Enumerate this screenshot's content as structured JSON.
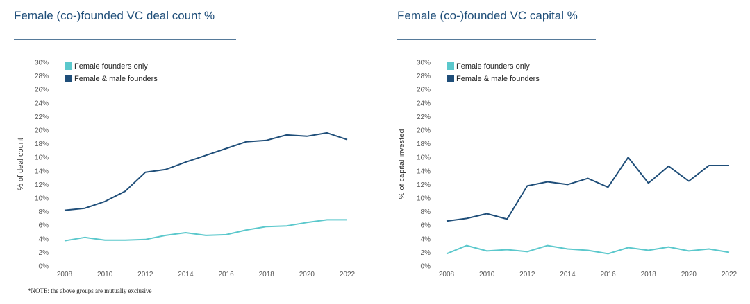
{
  "note": "*NOTE: the above groups are mutually exclusive",
  "colors": {
    "female_only": "#5bc8cc",
    "mixed": "#1f4e79",
    "title": "#1f4e79"
  },
  "chart_data": [
    {
      "type": "line",
      "title": "Female (co-)founded VC deal count %",
      "xlabel": "",
      "ylabel": "% of deal count",
      "ylim": [
        0,
        30
      ],
      "y_ticks": [
        "0%",
        "2%",
        "4%",
        "6%",
        "8%",
        "10%",
        "12%",
        "14%",
        "16%",
        "18%",
        "20%",
        "22%",
        "24%",
        "26%",
        "28%",
        "30%"
      ],
      "x_ticks": [
        "2008",
        "2010",
        "2012",
        "2014",
        "2016",
        "2018",
        "2020",
        "2022"
      ],
      "x": [
        2008,
        2009,
        2010,
        2011,
        2012,
        2013,
        2014,
        2015,
        2016,
        2017,
        2018,
        2019,
        2020,
        2021,
        2022
      ],
      "legend_position": "top-left",
      "series": [
        {
          "name": "Female founders only",
          "color": "#5bc8cc",
          "values": [
            3.7,
            4.2,
            3.8,
            3.8,
            3.9,
            4.5,
            4.9,
            4.5,
            4.6,
            5.3,
            5.8,
            5.9,
            6.4,
            6.8,
            6.8
          ]
        },
        {
          "name": "Female & male founders",
          "color": "#1f4e79",
          "values": [
            8.2,
            8.5,
            9.5,
            11.0,
            13.8,
            14.2,
            15.3,
            16.3,
            17.3,
            18.3,
            18.5,
            19.3,
            19.1,
            19.6,
            18.6
          ]
        }
      ]
    },
    {
      "type": "line",
      "title": "Female (co-)founded VC capital %",
      "xlabel": "",
      "ylabel": "% of capital invested",
      "ylim": [
        0,
        30
      ],
      "y_ticks": [
        "0%",
        "2%",
        "4%",
        "6%",
        "8%",
        "10%",
        "12%",
        "14%",
        "16%",
        "18%",
        "20%",
        "22%",
        "24%",
        "26%",
        "28%",
        "30%"
      ],
      "x_ticks": [
        "2008",
        "2010",
        "2012",
        "2014",
        "2016",
        "2018",
        "2020",
        "2022"
      ],
      "x": [
        2008,
        2009,
        2010,
        2011,
        2012,
        2013,
        2014,
        2015,
        2016,
        2017,
        2018,
        2019,
        2020,
        2021,
        2022
      ],
      "legend_position": "top-left",
      "series": [
        {
          "name": "Female founders only",
          "color": "#5bc8cc",
          "values": [
            1.8,
            3.0,
            2.2,
            2.4,
            2.1,
            3.0,
            2.5,
            2.3,
            1.8,
            2.7,
            2.3,
            2.8,
            2.2,
            2.5,
            2.0
          ]
        },
        {
          "name": "Female & male founders",
          "color": "#1f4e79",
          "values": [
            6.6,
            7.0,
            7.7,
            6.9,
            11.8,
            12.4,
            12.0,
            12.9,
            11.6,
            16.0,
            12.2,
            14.7,
            12.5,
            14.8,
            14.8
          ]
        }
      ]
    }
  ]
}
